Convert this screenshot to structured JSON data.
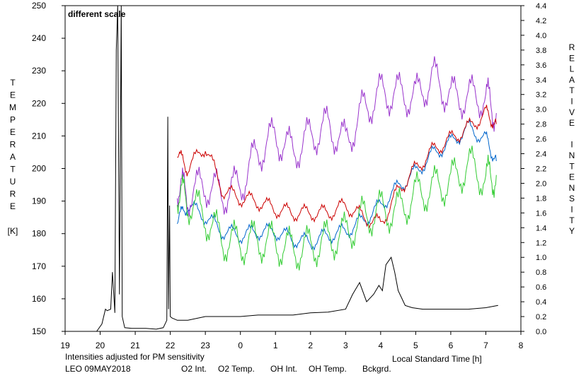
{
  "chart_data": {
    "type": "line",
    "annotation": "different scale",
    "note": "Intensities adjusted for PM sensitivity",
    "station_label": "LEO 09MAY2018",
    "xlabel": "Local Standard Time [h]",
    "ylabel_left_letters": [
      "T",
      "E",
      "M",
      "P",
      "E",
      "R",
      "A",
      "T",
      "U",
      "R",
      "E",
      "",
      "[K]"
    ],
    "ylabel_right_letters": [
      "R",
      "E",
      "L",
      "A",
      "T",
      "I",
      "V",
      "E",
      "",
      "I",
      "N",
      "T",
      "E",
      "N",
      "S",
      "I",
      "T",
      "Y"
    ],
    "x_ticks": [
      "19",
      "20",
      "21",
      "22",
      "23",
      "0",
      "1",
      "2",
      "3",
      "4",
      "5",
      "6",
      "7",
      "8"
    ],
    "y_left_ticks": [
      "150",
      "160",
      "170",
      "180",
      "190",
      "200",
      "210",
      "220",
      "230",
      "240",
      "250"
    ],
    "y_right_ticks": [
      "0.0",
      "0.2",
      "0.4",
      "0.6",
      "0.8",
      "1.0",
      "1.2",
      "1.4",
      "1.6",
      "1.8",
      "2.0",
      "2.2",
      "2.4",
      "2.6",
      "2.8",
      "3.0",
      "3.2",
      "3.4",
      "3.6",
      "3.8",
      "4.0",
      "4.2",
      "4.4"
    ],
    "xlim": [
      19,
      32
    ],
    "ylim_left": [
      150,
      250
    ],
    "ylim_right": [
      0,
      4.4
    ],
    "colors": {
      "O2 Int.": "#0066cc",
      "O2 Temp.": "#9933cc",
      "OH Int.": "#cc0000",
      "OH Temp.": "#33cc33",
      "Bckgrd.": "#000000",
      "annotation": "#cc0000",
      "note": "#33cc33"
    },
    "series": [
      {
        "name": "O2 Int.",
        "axis": "right",
        "x": [
          22.2,
          22.5,
          23,
          23.5,
          24,
          24.5,
          25,
          25.5,
          26,
          26.5,
          27,
          27.5,
          28,
          28.5,
          29,
          29.5,
          30,
          30.5,
          31,
          31.3
        ],
        "y": [
          1.5,
          1.7,
          1.55,
          1.35,
          1.3,
          1.35,
          1.35,
          1.25,
          1.2,
          1.3,
          1.35,
          1.5,
          1.7,
          1.95,
          2.15,
          2.4,
          2.55,
          2.75,
          2.6,
          2.3
        ]
      },
      {
        "name": "O2 Temp.",
        "axis": "left",
        "x": [
          22.2,
          22.5,
          23,
          23.5,
          24,
          24.5,
          25,
          25.5,
          26,
          26.5,
          27,
          27.5,
          28,
          28.5,
          29,
          29.5,
          30,
          30.5,
          31,
          31.3
        ],
        "y": [
          195,
          192,
          195,
          192,
          195,
          205,
          210,
          205,
          210,
          213,
          208,
          218,
          223,
          223,
          222,
          228,
          222,
          222,
          222,
          217
        ]
      },
      {
        "name": "OH Int.",
        "axis": "right",
        "x": [
          22.2,
          22.5,
          23,
          23.5,
          24,
          24.5,
          25,
          25.5,
          26,
          26.5,
          27,
          27.5,
          28,
          28.5,
          29,
          29.5,
          30,
          30.5,
          31,
          31.3
        ],
        "y": [
          2.4,
          2.2,
          2.5,
          1.9,
          1.8,
          1.75,
          1.65,
          1.6,
          1.6,
          1.6,
          1.7,
          1.55,
          1.45,
          1.9,
          2.2,
          2.45,
          2.6,
          2.75,
          2.95,
          2.8
        ]
      },
      {
        "name": "OH Temp.",
        "axis": "left",
        "x": [
          22.2,
          22.5,
          23,
          23.5,
          24,
          24.5,
          25,
          25.5,
          26,
          26.5,
          27,
          27.5,
          28,
          28.5,
          29,
          29.5,
          30,
          30.5,
          31,
          31.3
        ],
        "y": [
          193,
          190,
          185,
          178,
          177,
          178,
          177,
          175,
          176,
          178,
          180,
          185,
          187,
          187,
          192,
          194,
          196,
          201,
          197,
          198
        ]
      },
      {
        "name": "Bckgrd.",
        "axis": "right",
        "x": [
          19.9,
          20.05,
          20.15,
          20.2,
          20.3,
          20.35,
          20.42,
          20.46,
          20.5,
          20.55,
          20.6,
          20.63,
          20.7,
          20.9,
          21.3,
          21.6,
          21.8,
          21.9,
          21.93,
          21.95,
          21.98,
          22.0,
          22.05,
          22.2,
          22.5,
          23,
          23.5,
          24,
          24.5,
          25,
          25.5,
          26,
          26.5,
          27,
          27.2,
          27.4,
          27.6,
          27.8,
          27.95,
          28.05,
          28.15,
          28.3,
          28.4,
          28.5,
          28.6,
          28.7,
          28.9,
          29.2,
          29.5,
          30,
          30.5,
          31,
          31.35
        ],
        "y": [
          0.0,
          0.1,
          0.3,
          0.28,
          0.3,
          0.8,
          0.25,
          3.8,
          4.4,
          0.5,
          4.4,
          0.2,
          0.05,
          0.04,
          0.04,
          0.03,
          0.05,
          0.15,
          2.9,
          0.3,
          1.7,
          0.2,
          0.18,
          0.15,
          0.15,
          0.2,
          0.2,
          0.2,
          0.22,
          0.22,
          0.22,
          0.25,
          0.26,
          0.3,
          0.5,
          0.66,
          0.4,
          0.5,
          0.62,
          0.55,
          0.9,
          1.0,
          0.8,
          0.55,
          0.45,
          0.35,
          0.32,
          0.3,
          0.3,
          0.3,
          0.3,
          0.32,
          0.35
        ]
      }
    ]
  }
}
